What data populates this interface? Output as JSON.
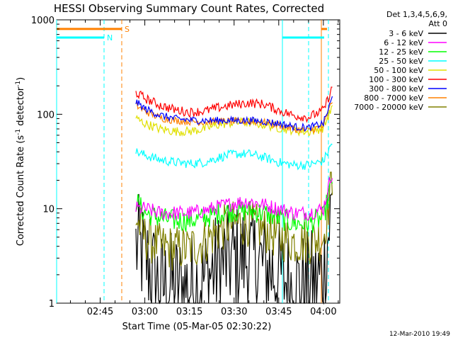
{
  "chart_data": {
    "type": "line",
    "title": "HESSI Observing Summary Count Rates, Corrected",
    "xlabel": "Start Time (05-Mar-05 02:30:22)",
    "ylabel_main": "Corrected Count Rate (s",
    "ylabel_sup1": "-1",
    "ylabel_mid": " detector",
    "ylabel_sup2": "-1",
    "ylabel_end": ")",
    "yscale": "log",
    "ylim": [
      1,
      1000
    ],
    "xlim": [
      "02:30:22",
      "04:05:30"
    ],
    "x_ticks": [
      "02:45",
      "03:00",
      "03:15",
      "03:30",
      "03:45",
      "04:00"
    ],
    "y_ticks": [
      "1",
      "10",
      "100",
      "1000"
    ],
    "legend_header": [
      "Det 1,3,4,5,6,9,",
      "Att 0"
    ],
    "legend_position": "top-right, outside plot",
    "series": [
      {
        "name": "3 - 6 keV",
        "color": "#000000",
        "x": [
          "02:57",
          "03:00",
          "03:05",
          "03:10",
          "03:15",
          "03:20",
          "03:25",
          "03:30",
          "03:35",
          "03:40",
          "03:45",
          "03:50",
          "03:55",
          "04:00",
          "04:03"
        ],
        "y": [
          4,
          3,
          1.5,
          1.5,
          1.5,
          1.8,
          2.5,
          3,
          3,
          2.5,
          2,
          1.5,
          1.5,
          2,
          12
        ]
      },
      {
        "name": "6 - 12 keV",
        "color": "#ff00ff",
        "x": [
          "02:57",
          "03:00",
          "03:05",
          "03:10",
          "03:15",
          "03:20",
          "03:25",
          "03:30",
          "03:35",
          "03:40",
          "03:45",
          "03:50",
          "03:55",
          "04:00",
          "04:03"
        ],
        "y": [
          10,
          10,
          9,
          9,
          9,
          9.5,
          10.5,
          11.5,
          12,
          11,
          10,
          9,
          9,
          10,
          25
        ]
      },
      {
        "name": "12 - 25 keV",
        "color": "#00ff00",
        "x": [
          "02:57",
          "03:00",
          "03:05",
          "03:10",
          "03:15",
          "03:20",
          "03:25",
          "03:30",
          "03:35",
          "03:40",
          "03:45",
          "03:50",
          "03:55",
          "04:00",
          "04:03"
        ],
        "y": [
          12,
          9,
          8,
          7.5,
          7.5,
          8,
          9,
          9.5,
          9.5,
          9,
          8,
          7,
          7,
          8,
          20
        ]
      },
      {
        "name": "25 - 50 keV",
        "color": "#00ffff",
        "x": [
          "02:57",
          "03:00",
          "03:05",
          "03:10",
          "03:15",
          "03:20",
          "03:25",
          "03:30",
          "03:35",
          "03:40",
          "03:45",
          "03:50",
          "03:55",
          "04:00",
          "04:03"
        ],
        "y": [
          40,
          37,
          33,
          31,
          30,
          31,
          35,
          38,
          38,
          35,
          31,
          29,
          29,
          32,
          50
        ]
      },
      {
        "name": "50 - 100 keV",
        "color": "#e0e000",
        "x": [
          "02:57",
          "03:00",
          "03:05",
          "03:10",
          "03:15",
          "03:20",
          "03:25",
          "03:30",
          "03:35",
          "03:40",
          "03:45",
          "03:50",
          "03:55",
          "04:00",
          "04:03"
        ],
        "y": [
          90,
          80,
          70,
          66,
          66,
          70,
          78,
          82,
          82,
          78,
          72,
          68,
          65,
          72,
          120
        ]
      },
      {
        "name": "100 - 300 keV",
        "color": "#ff0000",
        "x": [
          "02:57",
          "03:00",
          "03:05",
          "03:10",
          "03:15",
          "03:20",
          "03:25",
          "03:30",
          "03:35",
          "03:40",
          "03:45",
          "03:50",
          "03:55",
          "04:00",
          "04:03"
        ],
        "y": [
          170,
          148,
          125,
          112,
          105,
          108,
          118,
          126,
          132,
          128,
          110,
          97,
          93,
          110,
          190
        ]
      },
      {
        "name": "300 - 800 keV",
        "color": "#0000ff",
        "x": [
          "02:57",
          "03:00",
          "03:05",
          "03:10",
          "03:15",
          "03:20",
          "03:25",
          "03:30",
          "03:35",
          "03:40",
          "03:45",
          "03:50",
          "03:55",
          "04:00",
          "04:03"
        ],
        "y": [
          135,
          115,
          98,
          90,
          87,
          86,
          86,
          86,
          86,
          84,
          80,
          74,
          72,
          80,
          150
        ]
      },
      {
        "name": "800 - 7000 keV",
        "color": "#ff8000",
        "x": [
          "02:57",
          "03:00",
          "03:05",
          "03:10",
          "03:15",
          "03:20",
          "03:25",
          "03:30",
          "03:35",
          "03:40",
          "03:45",
          "03:50",
          "03:55",
          "04:00",
          "04:03"
        ],
        "y": [
          125,
          108,
          92,
          86,
          84,
          83,
          84,
          84,
          84,
          82,
          77,
          70,
          67,
          75,
          140
        ]
      },
      {
        "name": "7000 - 20000 keV",
        "color": "#808000",
        "x": [
          "02:57",
          "03:00",
          "03:05",
          "03:10",
          "03:15",
          "03:20",
          "03:25",
          "03:30",
          "03:35",
          "03:40",
          "03:45",
          "03:50",
          "03:55",
          "04:00",
          "04:03"
        ],
        "y": [
          8,
          5,
          4,
          3.8,
          3.8,
          4.5,
          6,
          7,
          7,
          6,
          5,
          4.5,
          4.5,
          5,
          20
        ]
      }
    ],
    "flags": [
      {
        "label": "S",
        "color": "#ff8000",
        "value": "800",
        "position": "top-left"
      },
      {
        "label": "N",
        "color": "#00ffff",
        "value": "650",
        "position": "top-left"
      }
    ]
  },
  "footer": {
    "timestamp": "12-Mar-2010 19:49"
  }
}
